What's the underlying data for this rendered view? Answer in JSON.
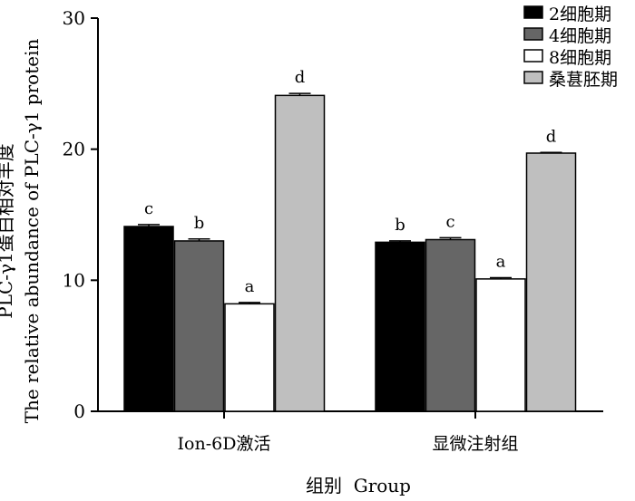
{
  "chart_data": {
    "type": "bar",
    "categories": [
      "Ion-6D激活",
      "显微注射组"
    ],
    "series": [
      {
        "name": "2细胞期",
        "color": "#000000",
        "values": [
          14.1,
          12.9
        ],
        "errors": [
          0.15,
          0.1
        ],
        "letters": [
          "c",
          "b"
        ]
      },
      {
        "name": "4细胞期",
        "color": "#666666",
        "values": [
          13.0,
          13.1
        ],
        "errors": [
          0.15,
          0.15
        ],
        "letters": [
          "b",
          "c"
        ]
      },
      {
        "name": "8细胞期",
        "color": "#ffffff",
        "values": [
          8.2,
          10.1
        ],
        "errors": [
          0.1,
          0.1
        ],
        "letters": [
          "a",
          "a"
        ]
      },
      {
        "name": "桑葚胚期",
        "color": "#bfbfbf",
        "values": [
          24.1,
          19.7
        ],
        "errors": [
          0.15,
          0.05
        ],
        "letters": [
          "d",
          "d"
        ]
      }
    ],
    "ylabel_line1": "PLC-γ1蛋白相对丰度",
    "ylabel_line2": "The relative abundance of PLC-γ1 protein",
    "xlabel": "组别  Group",
    "ylim": [
      0,
      30
    ],
    "yticks": [
      0,
      10,
      20,
      30
    ],
    "legend_position": "top-right"
  }
}
